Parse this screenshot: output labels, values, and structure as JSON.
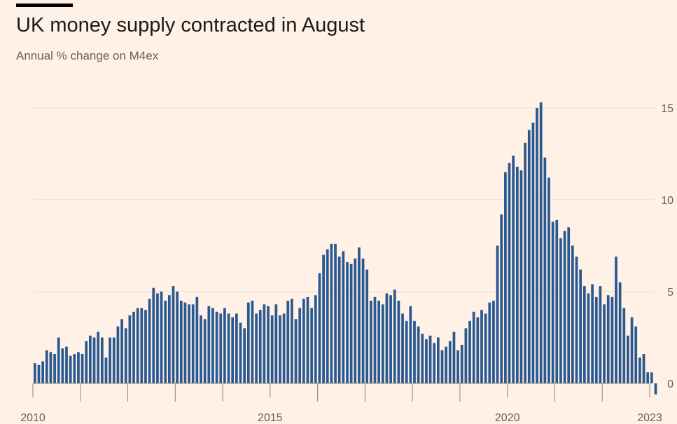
{
  "header": {
    "title": "UK money supply contracted in August",
    "subtitle": "Annual % change on M4ex"
  },
  "colors": {
    "background": "#fff1e5",
    "bar": "#2a5891",
    "grid": "#e8dcd2",
    "axis": "#8a8580",
    "text": "#66605c"
  },
  "chart_data": {
    "type": "bar",
    "title": "UK money supply contracted in August",
    "subtitle": "Annual % change on M4ex",
    "xlabel": "",
    "ylabel": "",
    "x_start": "2010-01",
    "x_end": "2022-08",
    "xlim": [
      "2010-01",
      "2023-01"
    ],
    "ylim": [
      -0.6,
      15.5
    ],
    "y_ticks": [
      0,
      5,
      10,
      15
    ],
    "x_ticks": [
      "2010",
      "2015",
      "2020",
      "2023"
    ],
    "grid": true,
    "series": [
      {
        "values": [
          1.1,
          1.0,
          1.2,
          1.8,
          1.7,
          1.6,
          2.5,
          1.9,
          2.0,
          1.5,
          1.6,
          1.7,
          1.6,
          2.3,
          2.6,
          2.5,
          2.8,
          2.5,
          1.4,
          2.5,
          2.5,
          3.1,
          3.5,
          3.0,
          3.7,
          3.9,
          4.1,
          4.1,
          4.0,
          4.6,
          5.2,
          4.9,
          5.0,
          4.5,
          4.8,
          5.3,
          5.0,
          4.5,
          4.4,
          4.3,
          4.3,
          4.7,
          3.7,
          3.5,
          4.2,
          4.1,
          3.9,
          3.8,
          4.1,
          3.8,
          3.6,
          3.8,
          3.3,
          3.0,
          4.4,
          4.5,
          3.8,
          4.0,
          4.3,
          4.2,
          3.7,
          4.3,
          3.7,
          3.8,
          4.5,
          4.6,
          3.5,
          4.1,
          4.6,
          4.7,
          4.1,
          4.8,
          6.0,
          7.0,
          7.3,
          7.6,
          7.6,
          6.9,
          7.2,
          6.6,
          6.5,
          6.8,
          7.4,
          6.8,
          6.2,
          4.5,
          4.7,
          4.5,
          4.3,
          4.9,
          4.8,
          5.1,
          4.5,
          3.8,
          3.4,
          4.2,
          3.4,
          3.1,
          2.7,
          2.4,
          2.6,
          2.2,
          2.5,
          1.8,
          2.0,
          2.3,
          2.8,
          1.8,
          2.1,
          3.0,
          3.4,
          3.9,
          3.6,
          4.0,
          3.8,
          4.4,
          4.5,
          7.5,
          9.2,
          11.5,
          12.0,
          12.4,
          11.8,
          11.6,
          13.1,
          13.8,
          14.2,
          15.0,
          15.3,
          12.3,
          11.2,
          8.8,
          8.9,
          7.9,
          8.3,
          8.5,
          7.5,
          6.9,
          6.2,
          5.3,
          4.9,
          5.4,
          4.7,
          5.3,
          4.3,
          4.8,
          4.7,
          6.9,
          5.5,
          4.1,
          2.6,
          3.6,
          3.1,
          1.4,
          1.6,
          0.6,
          0.6,
          -0.6
        ]
      }
    ]
  }
}
